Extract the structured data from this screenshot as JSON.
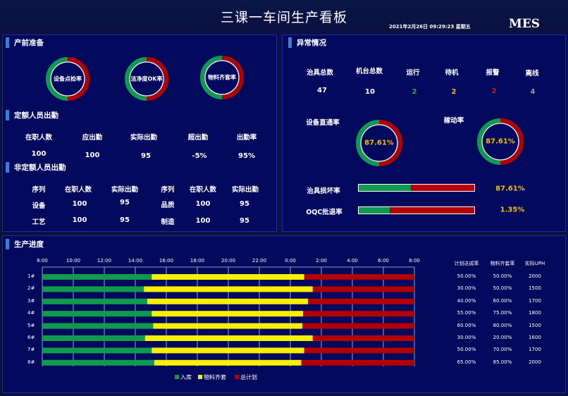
{
  "header": {
    "title": "三课一车间生产看板",
    "datetime": "2021年2月26日 09:29:23 星期五",
    "logo": "MES"
  },
  "prep": {
    "title": "产前准备",
    "donuts": [
      {
        "label": "设备点检率",
        "value": 50
      },
      {
        "label": "洁净度OK率",
        "value": 50
      },
      {
        "label": "物料齐套率",
        "value": 50
      }
    ]
  },
  "fixed_staff": {
    "title": "定额人员出勤",
    "headers": [
      "在职人数",
      "应出勤",
      "实际出勤",
      "超出勤",
      "出勤率"
    ],
    "values": [
      "100",
      "100",
      "95",
      "-5%",
      "95%"
    ]
  },
  "nonfixed_staff": {
    "title": "非定额人员出勤",
    "headers": [
      "序列",
      "在职人数",
      "实际出勤",
      "序列",
      "在职人数",
      "实际出勤"
    ],
    "rows": [
      [
        "设备",
        "100",
        "95",
        "品质",
        "100",
        "95"
      ],
      [
        "工艺",
        "100",
        "95",
        "制造",
        "100",
        "95"
      ]
    ]
  },
  "abnormal": {
    "title": "异常情况",
    "headers": [
      "治具总数",
      "机台总数",
      "运行",
      "待机",
      "报警",
      "离线"
    ],
    "values": [
      "47",
      "10",
      "2",
      "2",
      "2",
      "4"
    ],
    "value_colors": [
      "#ffffff",
      "#ffffff",
      "#2ea84f",
      "#f0c000",
      "#d01818",
      "#9a9a9a"
    ],
    "donuts": [
      {
        "label": "设备直通率",
        "value": "87.61%",
        "fraction": 0.5
      },
      {
        "label": "稼动率",
        "value": "87.61%",
        "fraction": 0.5
      }
    ],
    "bars": [
      {
        "label": "治具损坏率",
        "value": "87.61%",
        "fraction": 0.45
      },
      {
        "label": "OQC批退率",
        "value": "1.35%",
        "fraction": 0.27
      }
    ]
  },
  "production": {
    "title": "生产进度",
    "time_labels": [
      "8:00",
      "10:00",
      "12:00",
      "14:00",
      "16:00",
      "18:00",
      "20:00",
      "22:00",
      "0:00",
      "2:00",
      "4:00",
      "6:00",
      "8:00"
    ],
    "right_headers": [
      "计划达成率",
      "物料齐套率",
      "实际UPH"
    ],
    "legend": [
      "入库",
      "物料齐套",
      "总计划"
    ],
    "colors": {
      "stored": "#109a50",
      "material": "#f7f000",
      "plan": "#b30000"
    },
    "lines": [
      {
        "name": "1#",
        "stored": 0.294,
        "material": 0.704,
        "plan_rate": "50.00%",
        "mat_rate": "50.00%",
        "uph": "2000"
      },
      {
        "name": "2#",
        "stored": 0.273,
        "material": 0.727,
        "plan_rate": "30.00%",
        "mat_rate": "50.00%",
        "uph": "1500"
      },
      {
        "name": "3#",
        "stored": 0.282,
        "material": 0.714,
        "plan_rate": "40.00%",
        "mat_rate": "60.00%",
        "uph": "1700"
      },
      {
        "name": "4#",
        "stored": 0.294,
        "material": 0.701,
        "plan_rate": "55.00%",
        "mat_rate": "75.00%",
        "uph": "1800"
      },
      {
        "name": "5#",
        "stored": 0.298,
        "material": 0.699,
        "plan_rate": "60.00%",
        "mat_rate": "80.00%",
        "uph": "1500"
      },
      {
        "name": "6#",
        "stored": 0.276,
        "material": 0.727,
        "plan_rate": "30.00%",
        "mat_rate": "20.00%",
        "uph": "1600"
      },
      {
        "name": "7#",
        "stored": 0.294,
        "material": 0.704,
        "plan_rate": "50.00%",
        "mat_rate": "70.00%",
        "uph": "1700"
      },
      {
        "name": "8#",
        "stored": 0.301,
        "material": 0.696,
        "plan_rate": "65.00%",
        "mat_rate": "85.00%",
        "uph": "2000"
      }
    ]
  }
}
